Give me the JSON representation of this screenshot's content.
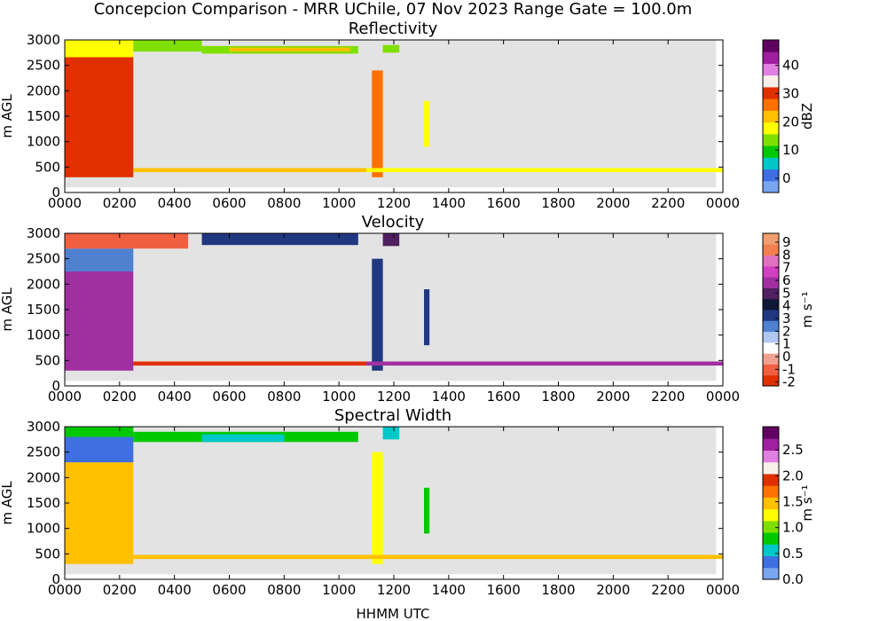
{
  "figure": {
    "title": "Concepcion Comparison - MRR UChile, 07 Nov 2023 Range Gate = 100.0m",
    "xlabel": "HHMM UTC",
    "background": "#ffffff"
  },
  "chart_data": [
    {
      "type": "heatmap",
      "title": "Reflectivity",
      "ylabel": "m AGL",
      "xlabel": "",
      "x_ticks": [
        "0000",
        "0200",
        "0400",
        "0600",
        "0800",
        "1000",
        "1200",
        "1400",
        "1600",
        "1800",
        "2000",
        "2200",
        "0000"
      ],
      "y_ticks": [
        0,
        500,
        1000,
        1500,
        2000,
        2500,
        3000
      ],
      "xlim_hours": [
        0,
        24
      ],
      "ylim": [
        0,
        3000
      ],
      "missing_color": "#e3e3e3",
      "colorbar": {
        "label": "dBZ",
        "range": [
          -5,
          49
        ],
        "ticks": [
          0,
          10,
          20,
          30,
          40
        ],
        "tick_labels": [
          "0",
          "10",
          "20",
          "30",
          "40"
        ],
        "colors": [
          "#7aa6f0",
          "#3f6fe0",
          "#00c8c8",
          "#00c800",
          "#7fe000",
          "#ffff00",
          "#ffc000",
          "#ff7000",
          "#e03000",
          "#f8f0e8",
          "#e080e0",
          "#a020a0",
          "#600060"
        ]
      },
      "regions": [
        {
          "x": [
            0.0,
            2.5
          ],
          "y": [
            300,
            2660
          ],
          "value": 28.5
        },
        {
          "x": [
            0.0,
            2.5
          ],
          "y": [
            2660,
            3000
          ],
          "value": 18
        },
        {
          "x": [
            2.5,
            5.0
          ],
          "y": [
            2770,
            3000
          ],
          "value": 15
        },
        {
          "x": [
            5.0,
            10.7
          ],
          "y": [
            2730,
            2880
          ],
          "value": 13
        },
        {
          "x": [
            6.0,
            10.4
          ],
          "y": [
            2770,
            2850
          ],
          "value": 22
        },
        {
          "x": [
            11.2,
            11.6
          ],
          "y": [
            300,
            2400
          ],
          "value": 27
        },
        {
          "x": [
            11.6,
            12.2
          ],
          "y": [
            2750,
            2900
          ],
          "value": 14
        },
        {
          "x": [
            13.1,
            13.3
          ],
          "y": [
            900,
            1800
          ],
          "value": 16
        },
        {
          "x": [
            2.5,
            11.0
          ],
          "y": [
            400,
            480
          ],
          "value": 22
        },
        {
          "x": [
            11.0,
            24.0
          ],
          "y": [
            400,
            480
          ],
          "value": 16
        }
      ]
    },
    {
      "type": "heatmap",
      "title": "Velocity",
      "ylabel": "m AGL",
      "xlabel": "",
      "x_ticks": [
        "0000",
        "0200",
        "0400",
        "0600",
        "0800",
        "1000",
        "1200",
        "1400",
        "1600",
        "1800",
        "2000",
        "2200",
        "0000"
      ],
      "y_ticks": [
        0,
        500,
        1000,
        1500,
        2000,
        2500,
        3000
      ],
      "xlim_hours": [
        0,
        24
      ],
      "ylim": [
        0,
        3000
      ],
      "missing_color": "#e3e3e3",
      "colorbar": {
        "label": "m s⁻¹",
        "range": [
          -2.3,
          9.7
        ],
        "ticks": [
          -2,
          -1,
          0,
          1,
          2,
          3,
          4,
          5,
          6,
          7,
          8,
          9
        ],
        "tick_labels": [
          "-2",
          "-1",
          "0",
          "1",
          "2",
          "3",
          "4",
          "5",
          "6",
          "7",
          "8",
          "9"
        ],
        "colors": [
          "#e03000",
          "#f06040",
          "#f0a090",
          "#ffffff",
          "#b0c8f0",
          "#5080d0",
          "#203880",
          "#101838",
          "#502060",
          "#a030a0",
          "#d040c0",
          "#e070c0",
          "#f08050",
          "#f0a070"
        ]
      },
      "regions": [
        {
          "x": [
            0.0,
            2.5
          ],
          "y": [
            300,
            2250
          ],
          "value": 5.5
        },
        {
          "x": [
            0.0,
            2.5
          ],
          "y": [
            2250,
            2700
          ],
          "value": 2.0
        },
        {
          "x": [
            0.0,
            4.5
          ],
          "y": [
            2700,
            3000
          ],
          "value": -0.8
        },
        {
          "x": [
            5.0,
            10.7
          ],
          "y": [
            2770,
            3000
          ],
          "value": 3.2
        },
        {
          "x": [
            11.2,
            11.6
          ],
          "y": [
            300,
            2500
          ],
          "value": 3.0
        },
        {
          "x": [
            11.6,
            12.2
          ],
          "y": [
            2750,
            3000
          ],
          "value": 5.0
        },
        {
          "x": [
            13.1,
            13.3
          ],
          "y": [
            800,
            1900
          ],
          "value": 3.0
        },
        {
          "x": [
            2.5,
            11.0
          ],
          "y": [
            400,
            480
          ],
          "value": -1.5
        },
        {
          "x": [
            11.0,
            24.0
          ],
          "y": [
            400,
            480
          ],
          "value": 5.5
        }
      ]
    },
    {
      "type": "heatmap",
      "title": "Spectral Width",
      "ylabel": "m AGL",
      "xlabel": "HHMM UTC",
      "x_ticks": [
        "0000",
        "0200",
        "0400",
        "0600",
        "0800",
        "1000",
        "1200",
        "1400",
        "1600",
        "1800",
        "2000",
        "2200",
        "0000"
      ],
      "y_ticks": [
        0,
        500,
        1000,
        1500,
        2000,
        2500,
        3000
      ],
      "xlim_hours": [
        0,
        24
      ],
      "ylim": [
        0,
        3000
      ],
      "missing_color": "#e3e3e3",
      "colorbar": {
        "label": "m s⁻¹",
        "range": [
          0,
          2.95
        ],
        "ticks": [
          0.0,
          0.5,
          1.0,
          1.5,
          2.0,
          2.5
        ],
        "tick_labels": [
          "0.0",
          "0.5",
          "1.0",
          "1.5",
          "2.0",
          "2.5"
        ],
        "colors": [
          "#7aa6f0",
          "#3f6fe0",
          "#00c8c8",
          "#00c800",
          "#7fe000",
          "#ffff00",
          "#ffc000",
          "#ff7000",
          "#e03000",
          "#f8f0e8",
          "#e080e0",
          "#a020a0",
          "#600060"
        ]
      },
      "regions": [
        {
          "x": [
            0.0,
            2.5
          ],
          "y": [
            300,
            2300
          ],
          "value": 1.55
        },
        {
          "x": [
            0.0,
            2.5
          ],
          "y": [
            2300,
            2800
          ],
          "value": 0.45
        },
        {
          "x": [
            0.0,
            2.5
          ],
          "y": [
            2800,
            3000
          ],
          "value": 0.85
        },
        {
          "x": [
            2.5,
            10.7
          ],
          "y": [
            2700,
            2900
          ],
          "value": 0.85
        },
        {
          "x": [
            5.0,
            8.0
          ],
          "y": [
            2700,
            2850
          ],
          "value": 0.5
        },
        {
          "x": [
            11.2,
            11.6
          ],
          "y": [
            300,
            2500
          ],
          "value": 1.2
        },
        {
          "x": [
            11.6,
            12.2
          ],
          "y": [
            2750,
            3000
          ],
          "value": 0.6
        },
        {
          "x": [
            13.1,
            13.3
          ],
          "y": [
            900,
            1800
          ],
          "value": 0.9
        },
        {
          "x": [
            2.5,
            24.0
          ],
          "y": [
            400,
            480
          ],
          "value": 1.5
        }
      ]
    }
  ]
}
